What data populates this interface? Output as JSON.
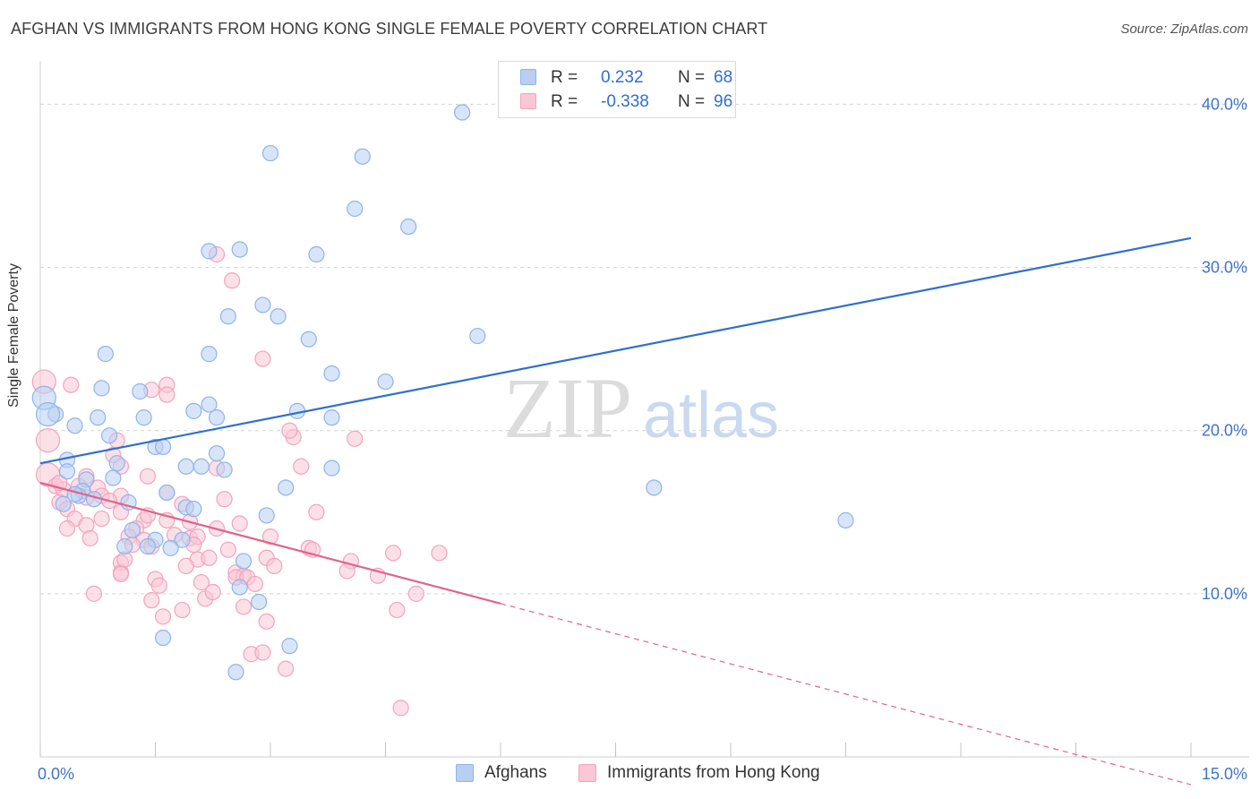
{
  "chart_data": {
    "type": "scatter",
    "title": "AFGHAN VS IMMIGRANTS FROM HONG KONG SINGLE FEMALE POVERTY CORRELATION CHART",
    "source": "Source: ZipAtlas.com",
    "xlabel": "",
    "ylabel": "Single Female Poverty",
    "xlim": [
      0,
      15
    ],
    "ylim": [
      0,
      42
    ],
    "x_tick_labels": [
      "0.0%",
      "15.0%"
    ],
    "y_tick_values": [
      10,
      20,
      30,
      40
    ],
    "y_tick_labels": [
      "10.0%",
      "20.0%",
      "30.0%",
      "40.0%"
    ],
    "grid": true,
    "watermark": {
      "zip": "ZIP",
      "atlas": "atlas"
    },
    "legend_stats": {
      "r_label": "R =",
      "n_label": "N =",
      "rows": [
        {
          "r": "0.232",
          "n": "68"
        },
        {
          "r": "-0.338",
          "n": "96"
        }
      ]
    },
    "series": [
      {
        "name": "Afghans",
        "color": "#8fb4e8",
        "fill": "#b8cff2",
        "line_color": "#2f6fd0",
        "trend": {
          "x1": 0.0,
          "y1": 18.0,
          "x2": 15.0,
          "y2": 31.8
        },
        "points": [
          [
            5.5,
            39.5
          ],
          [
            3.0,
            37.0
          ],
          [
            4.2,
            36.8
          ],
          [
            4.1,
            33.6
          ],
          [
            4.8,
            32.5
          ],
          [
            2.2,
            31.0
          ],
          [
            2.6,
            31.1
          ],
          [
            3.6,
            30.8
          ],
          [
            2.9,
            27.7
          ],
          [
            3.1,
            27.0
          ],
          [
            2.45,
            27.0
          ],
          [
            5.7,
            25.8
          ],
          [
            3.5,
            25.6
          ],
          [
            0.85,
            24.7
          ],
          [
            2.2,
            24.7
          ],
          [
            3.8,
            23.5
          ],
          [
            4.5,
            23.0
          ],
          [
            0.8,
            22.6
          ],
          [
            1.3,
            22.4
          ],
          [
            0.05,
            22.0
          ],
          [
            0.2,
            21.0
          ],
          [
            2.2,
            21.6
          ],
          [
            2.0,
            21.2
          ],
          [
            3.35,
            21.2
          ],
          [
            1.35,
            20.8
          ],
          [
            0.75,
            20.8
          ],
          [
            2.3,
            20.8
          ],
          [
            3.8,
            20.8
          ],
          [
            0.45,
            20.3
          ],
          [
            0.9,
            19.7
          ],
          [
            1.5,
            19.0
          ],
          [
            1.6,
            19.0
          ],
          [
            2.3,
            18.6
          ],
          [
            0.35,
            18.2
          ],
          [
            1.0,
            18.0
          ],
          [
            1.9,
            17.8
          ],
          [
            2.1,
            17.8
          ],
          [
            2.4,
            17.6
          ],
          [
            3.8,
            17.7
          ],
          [
            0.35,
            17.5
          ],
          [
            0.6,
            17.0
          ],
          [
            0.95,
            17.1
          ],
          [
            3.2,
            16.5
          ],
          [
            8.0,
            16.5
          ],
          [
            0.55,
            16.3
          ],
          [
            0.5,
            16.0
          ],
          [
            0.7,
            15.8
          ],
          [
            1.15,
            15.6
          ],
          [
            1.65,
            16.2
          ],
          [
            0.3,
            15.5
          ],
          [
            1.9,
            15.3
          ],
          [
            2.0,
            15.2
          ],
          [
            2.95,
            14.8
          ],
          [
            10.5,
            14.5
          ],
          [
            1.2,
            13.9
          ],
          [
            1.5,
            13.3
          ],
          [
            1.85,
            13.3
          ],
          [
            1.1,
            12.9
          ],
          [
            1.4,
            12.9
          ],
          [
            1.7,
            12.8
          ],
          [
            2.65,
            12.0
          ],
          [
            2.6,
            10.4
          ],
          [
            2.85,
            9.5
          ],
          [
            1.6,
            7.3
          ],
          [
            3.25,
            6.8
          ],
          [
            2.55,
            5.2
          ],
          [
            0.1,
            21.0
          ],
          [
            0.45,
            16.1
          ]
        ]
      },
      {
        "name": "Immigrants from Hong Kong",
        "color": "#f2a3bd",
        "fill": "#f9c7d6",
        "line_color": "#e0648e",
        "trend": {
          "x1": 0.0,
          "y1": 16.8,
          "x2": 6.0,
          "y2": 9.4
        },
        "trend_ext": {
          "x1": 6.0,
          "y1": 9.4,
          "x2": 15.0,
          "y2": -1.7
        },
        "points": [
          [
            2.3,
            30.8
          ],
          [
            2.5,
            29.2
          ],
          [
            2.9,
            24.4
          ],
          [
            0.05,
            23.0
          ],
          [
            0.4,
            22.8
          ],
          [
            1.65,
            22.8
          ],
          [
            1.45,
            22.5
          ],
          [
            1.65,
            22.2
          ],
          [
            3.3,
            19.6
          ],
          [
            0.1,
            19.4
          ],
          [
            3.25,
            20.0
          ],
          [
            4.1,
            19.5
          ],
          [
            1.0,
            19.4
          ],
          [
            0.95,
            18.5
          ],
          [
            1.05,
            17.8
          ],
          [
            3.4,
            17.8
          ],
          [
            2.3,
            17.7
          ],
          [
            0.1,
            17.3
          ],
          [
            0.6,
            17.2
          ],
          [
            1.4,
            17.2
          ],
          [
            0.2,
            16.6
          ],
          [
            0.3,
            16.4
          ],
          [
            0.5,
            16.6
          ],
          [
            0.75,
            16.5
          ],
          [
            1.05,
            16.0
          ],
          [
            1.65,
            16.2
          ],
          [
            0.8,
            16.0
          ],
          [
            0.9,
            15.7
          ],
          [
            1.85,
            15.5
          ],
          [
            0.25,
            15.6
          ],
          [
            2.4,
            15.8
          ],
          [
            3.6,
            15.0
          ],
          [
            0.35,
            15.2
          ],
          [
            1.05,
            15.0
          ],
          [
            0.45,
            14.6
          ],
          [
            0.8,
            14.6
          ],
          [
            1.35,
            14.5
          ],
          [
            1.65,
            14.5
          ],
          [
            1.95,
            14.4
          ],
          [
            2.6,
            14.3
          ],
          [
            0.6,
            14.2
          ],
          [
            1.25,
            14.0
          ],
          [
            2.3,
            14.0
          ],
          [
            3.0,
            13.5
          ],
          [
            0.65,
            13.4
          ],
          [
            1.15,
            13.5
          ],
          [
            1.35,
            13.3
          ],
          [
            1.95,
            13.4
          ],
          [
            2.05,
            13.5
          ],
          [
            1.2,
            13.0
          ],
          [
            1.45,
            12.9
          ],
          [
            3.5,
            12.8
          ],
          [
            3.55,
            12.7
          ],
          [
            5.2,
            12.5
          ],
          [
            4.6,
            12.5
          ],
          [
            2.05,
            12.1
          ],
          [
            2.2,
            12.2
          ],
          [
            2.95,
            12.2
          ],
          [
            4.05,
            12.0
          ],
          [
            1.05,
            11.9
          ],
          [
            1.9,
            11.7
          ],
          [
            2.55,
            11.3
          ],
          [
            1.05,
            11.3
          ],
          [
            1.05,
            11.2
          ],
          [
            4.0,
            11.4
          ],
          [
            2.65,
            11.1
          ],
          [
            4.4,
            11.1
          ],
          [
            2.55,
            11.0
          ],
          [
            2.7,
            11.0
          ],
          [
            1.5,
            10.9
          ],
          [
            1.55,
            10.5
          ],
          [
            2.1,
            10.7
          ],
          [
            2.8,
            10.6
          ],
          [
            0.7,
            10.0
          ],
          [
            4.9,
            10.0
          ],
          [
            1.45,
            9.6
          ],
          [
            2.15,
            9.7
          ],
          [
            2.65,
            9.2
          ],
          [
            1.85,
            9.0
          ],
          [
            4.65,
            9.0
          ],
          [
            1.6,
            8.6
          ],
          [
            2.95,
            8.3
          ],
          [
            2.75,
            6.3
          ],
          [
            2.9,
            6.4
          ],
          [
            3.2,
            5.4
          ],
          [
            4.7,
            3.0
          ],
          [
            0.25,
            16.8
          ],
          [
            0.6,
            15.9
          ],
          [
            1.4,
            14.8
          ],
          [
            2.0,
            13.0
          ],
          [
            2.45,
            12.7
          ],
          [
            0.35,
            14.0
          ],
          [
            1.1,
            12.1
          ],
          [
            2.25,
            10.1
          ],
          [
            3.05,
            11.7
          ],
          [
            1.75,
            13.6
          ]
        ]
      }
    ]
  }
}
